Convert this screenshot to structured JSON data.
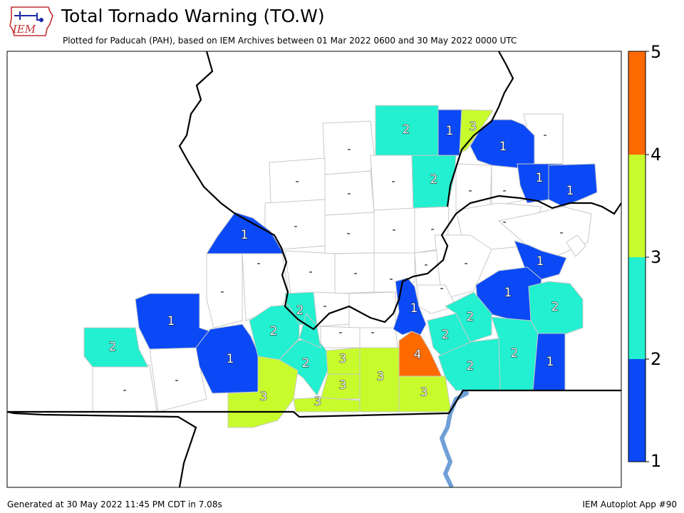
{
  "header": {
    "title": "Total Tornado Warning (TO.W)",
    "subtitle": "Plotted for Paducah (PAH), based on IEM Archives  between 01 Mar 2022 0600 and 30 May 2022 0000 UTC"
  },
  "logo": {
    "text": "IEM",
    "icon": "iowa-state-outline-icon"
  },
  "footer": {
    "generated": "Generated at 30 May 2022 11:45 PM CDT in 7.08s",
    "app": "IEM Autoplot App #90"
  },
  "colorbar": {
    "labels": [
      "1",
      "2",
      "3",
      "4",
      "5"
    ],
    "colors": [
      "#0a49f5",
      "#22f0d0",
      "#c8fb2c",
      "#ff6a00"
    ]
  },
  "colors": {
    "none": "#ffffff",
    "c1": "#0a49f5",
    "c2": "#22f0d0",
    "c3": "#c8fb2c",
    "c4": "#ff6a00",
    "river": "#6f9fd6"
  },
  "counties": [
    {
      "id": "c01",
      "value": "2",
      "color": "#22f0d0"
    },
    {
      "id": "c02",
      "value": "1",
      "color": "#0a49f5"
    },
    {
      "id": "c03",
      "value": "3",
      "color": "#c8fb2c"
    },
    {
      "id": "c04",
      "value": "1",
      "color": "#0a49f5"
    },
    {
      "id": "c05",
      "value": "2",
      "color": "#22f0d0"
    },
    {
      "id": "c06",
      "value": "1",
      "color": "#0a49f5"
    },
    {
      "id": "c07",
      "value": "1",
      "color": "#0a49f5"
    },
    {
      "id": "c08",
      "value": "1",
      "color": "#0a49f5"
    },
    {
      "id": "c09",
      "value": "1",
      "color": "#0a49f5"
    },
    {
      "id": "c10",
      "value": "1",
      "color": "#0a49f5"
    },
    {
      "id": "c11",
      "value": "2",
      "color": "#22f0d0"
    },
    {
      "id": "c12",
      "value": "2",
      "color": "#22f0d0"
    },
    {
      "id": "c13",
      "value": "2",
      "color": "#22f0d0"
    },
    {
      "id": "c14",
      "value": "1",
      "color": "#0a49f5"
    },
    {
      "id": "c15",
      "value": "1",
      "color": "#0a49f5"
    },
    {
      "id": "c16",
      "value": "2",
      "color": "#22f0d0"
    },
    {
      "id": "c17",
      "value": "2",
      "color": "#22f0d0"
    },
    {
      "id": "c18",
      "value": "4",
      "color": "#ff6a00"
    },
    {
      "id": "c19",
      "value": "2",
      "color": "#22f0d0"
    },
    {
      "id": "c20",
      "value": "2",
      "color": "#22f0d0"
    },
    {
      "id": "c21",
      "value": "2",
      "color": "#22f0d0"
    },
    {
      "id": "c22",
      "value": "1",
      "color": "#0a49f5"
    },
    {
      "id": "c23",
      "value": "2",
      "color": "#22f0d0"
    },
    {
      "id": "c24",
      "value": "3",
      "color": "#c8fb2c"
    },
    {
      "id": "c25",
      "value": "3",
      "color": "#c8fb2c"
    },
    {
      "id": "c26",
      "value": "3",
      "color": "#c8fb2c"
    },
    {
      "id": "c27",
      "value": "3",
      "color": "#c8fb2c"
    },
    {
      "id": "c28",
      "value": "3",
      "color": "#c8fb2c"
    },
    {
      "id": "c29",
      "value": "3",
      "color": "#c8fb2c"
    },
    {
      "id": "c30",
      "value": "1",
      "color": "#0a49f5"
    },
    {
      "id": "c31",
      "value": "2",
      "color": "#22f0d0"
    },
    {
      "id": "c32",
      "value": "1",
      "color": "#0a49f5"
    }
  ],
  "no_data_label": "-"
}
